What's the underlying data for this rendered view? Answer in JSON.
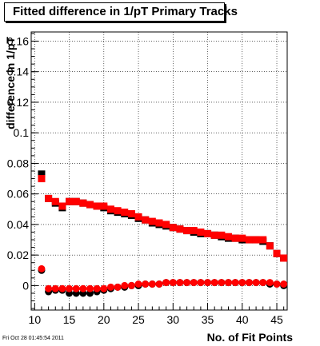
{
  "chart_data": {
    "type": "scatter",
    "title": "Fitted difference in 1/pT Primary Tracks",
    "xlabel": "No. of Fit Points",
    "ylabel": "difference in 1/pT",
    "xlim": [
      9.5,
      46.5
    ],
    "ylim": [
      -0.016,
      0.166
    ],
    "x_ticks": [
      10,
      15,
      20,
      25,
      30,
      35,
      40,
      45
    ],
    "x_tick_labels": [
      "10",
      "15",
      "20",
      "25",
      "30",
      "35",
      "40",
      "45"
    ],
    "y_ticks": [
      0,
      0.02,
      0.04,
      0.06,
      0.08,
      0.1,
      0.12,
      0.14,
      0.16
    ],
    "y_tick_labels": [
      "0",
      "0.02",
      "0.04",
      "0.06",
      "0.08",
      "0.1",
      "0.12",
      "0.14",
      "0.16"
    ],
    "grid": true,
    "x": [
      11,
      12,
      13,
      14,
      15,
      16,
      17,
      18,
      19,
      20,
      21,
      22,
      23,
      24,
      25,
      26,
      27,
      28,
      29,
      30,
      31,
      32,
      33,
      34,
      35,
      36,
      37,
      38,
      39,
      40,
      41,
      42,
      43,
      44,
      45,
      46
    ],
    "series": [
      {
        "marker": "square",
        "color": "#000000",
        "values": [
          0.073,
          0.057,
          0.054,
          0.051,
          0.055,
          0.055,
          0.054,
          0.053,
          0.052,
          0.051,
          0.049,
          0.048,
          0.047,
          0.046,
          0.044,
          0.043,
          0.041,
          0.04,
          0.039,
          0.038,
          0.037,
          0.036,
          0.035,
          0.034,
          0.034,
          0.033,
          0.032,
          0.031,
          0.031,
          0.03,
          0.03,
          0.03,
          0.029,
          0.026,
          0.021,
          0.018
        ]
      },
      {
        "marker": "square",
        "color": "#ff0000",
        "values": [
          0.07,
          0.057,
          0.055,
          0.052,
          0.055,
          0.055,
          0.054,
          0.053,
          0.052,
          0.052,
          0.05,
          0.049,
          0.048,
          0.047,
          0.045,
          0.043,
          0.042,
          0.041,
          0.04,
          0.038,
          0.037,
          0.036,
          0.036,
          0.035,
          0.034,
          0.033,
          0.033,
          0.032,
          0.031,
          0.031,
          0.03,
          0.03,
          0.03,
          0.026,
          0.021,
          0.018
        ]
      },
      {
        "marker": "circle",
        "color": "#000000",
        "values": [
          0.01,
          -0.004,
          -0.003,
          -0.003,
          -0.005,
          -0.005,
          -0.005,
          -0.005,
          -0.004,
          -0.003,
          -0.002,
          -0.001,
          -0.001,
          0.0,
          0.0,
          0.001,
          0.001,
          0.001,
          0.002,
          0.002,
          0.002,
          0.002,
          0.002,
          0.002,
          0.002,
          0.002,
          0.002,
          0.002,
          0.002,
          0.002,
          0.002,
          0.002,
          0.002,
          0.001,
          0.001,
          0.0
        ]
      },
      {
        "marker": "circle",
        "color": "#ff0000",
        "values": [
          0.011,
          -0.002,
          -0.002,
          -0.002,
          -0.002,
          -0.002,
          -0.002,
          -0.002,
          -0.002,
          -0.002,
          -0.001,
          -0.001,
          0.0,
          0.0,
          0.001,
          0.001,
          0.001,
          0.001,
          0.002,
          0.002,
          0.002,
          0.002,
          0.002,
          0.002,
          0.002,
          0.002,
          0.002,
          0.002,
          0.002,
          0.002,
          0.002,
          0.002,
          0.002,
          0.002,
          0.001,
          0.001
        ]
      }
    ]
  },
  "footer": {
    "timestamp": "Fri Oct 28 01:45:54 2011"
  }
}
